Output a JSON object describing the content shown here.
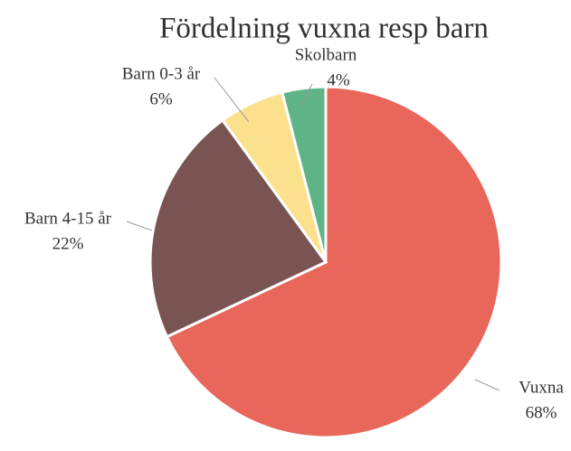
{
  "chart_data": {
    "type": "pie",
    "title": "Fördelning vuxna resp barn",
    "categories": [
      "Vuxna",
      "Barn 4-15 år",
      "Barn 0-3 år",
      "Skolbarn"
    ],
    "values": [
      68,
      22,
      6,
      4
    ],
    "value_labels": [
      "68%",
      "22%",
      "6%",
      "4%"
    ],
    "colors": [
      "#e8675a",
      "#7a5452",
      "#fbe08e",
      "#5fb487"
    ]
  }
}
